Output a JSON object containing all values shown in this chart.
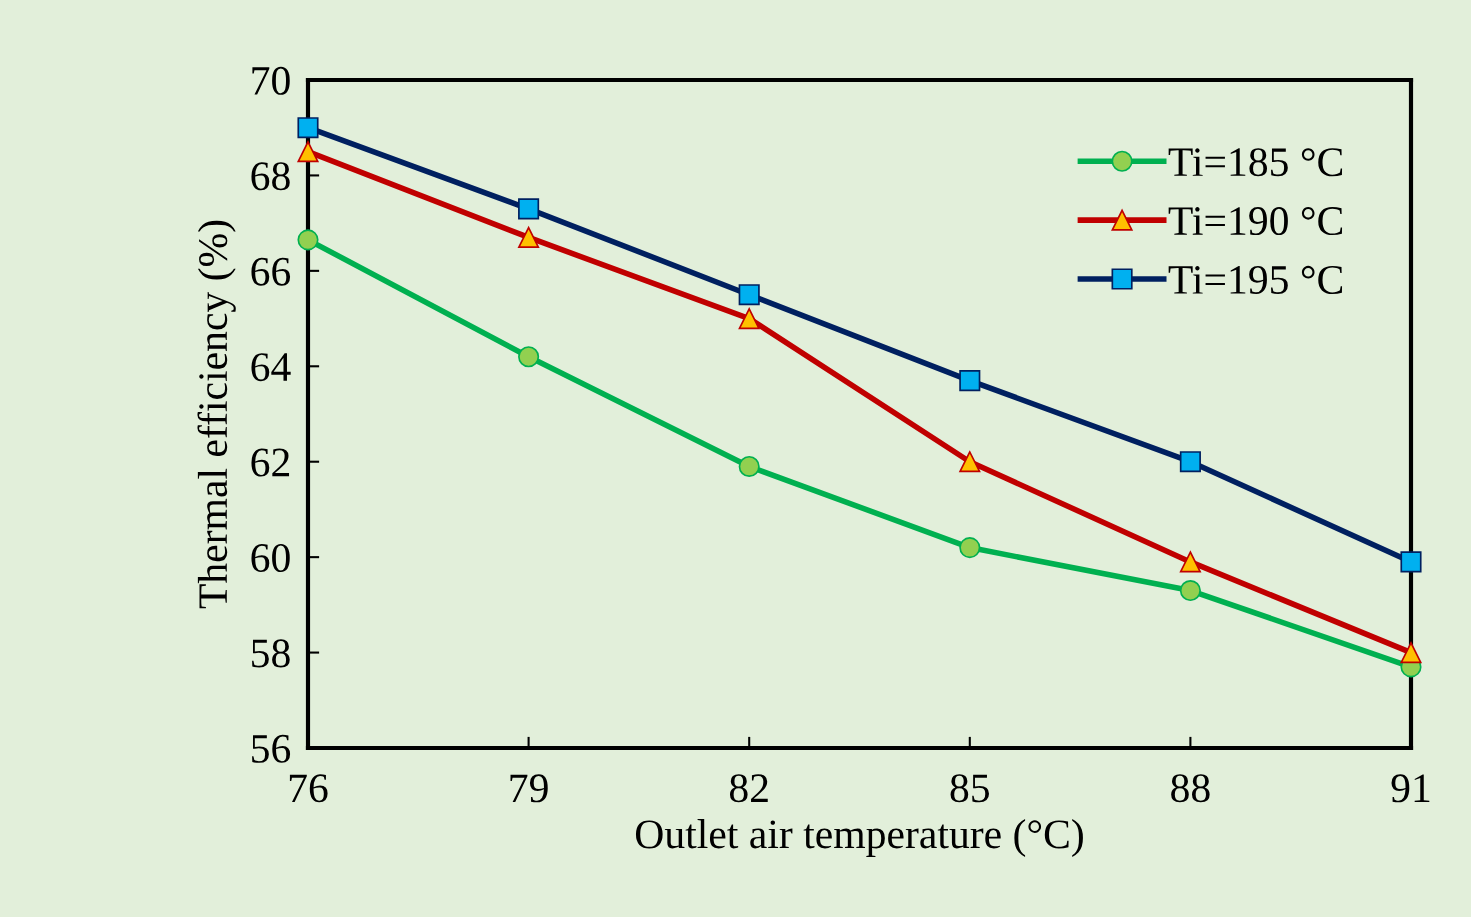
{
  "chart_data": {
    "type": "line",
    "xlabel": "Outlet air temperature (°C)",
    "ylabel": "Thermal efficiency (%)",
    "x": [
      76,
      79,
      82,
      85,
      88,
      91
    ],
    "series": [
      {
        "name": "Ti=185 °C",
        "color": "#00b050",
        "marker": "circle",
        "values": [
          66.65,
          64.2,
          61.9,
          60.2,
          59.3,
          57.7
        ]
      },
      {
        "name": "Ti=190 °C",
        "color": "#c00000",
        "marker": "triangle",
        "values": [
          68.5,
          66.7,
          65.0,
          62.0,
          59.9,
          58.0
        ]
      },
      {
        "name": "Ti=195 °C",
        "color": "#002060",
        "marker": "square",
        "values": [
          69.0,
          67.3,
          65.5,
          63.7,
          62.0,
          59.9
        ]
      }
    ],
    "xlim": [
      76,
      91
    ],
    "xticks": [
      76,
      79,
      82,
      85,
      88,
      91
    ],
    "ylim": [
      56,
      70
    ],
    "yticks": [
      56,
      58,
      60,
      62,
      64,
      66,
      68,
      70
    ],
    "grid": false,
    "legend": "top right",
    "line_style": "solid"
  }
}
